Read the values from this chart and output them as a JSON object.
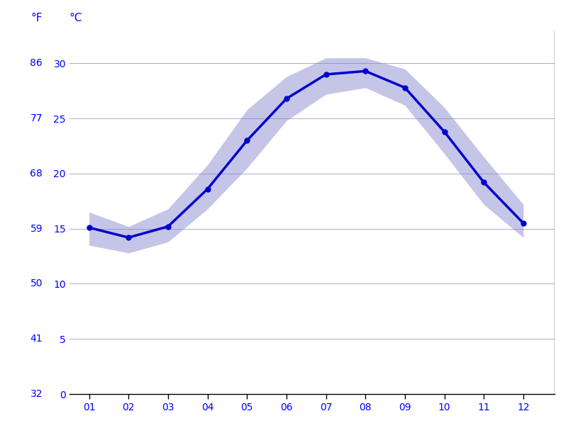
{
  "months": [
    1,
    2,
    3,
    4,
    5,
    6,
    7,
    8,
    9,
    10,
    11,
    12
  ],
  "month_labels": [
    "01",
    "02",
    "03",
    "04",
    "05",
    "06",
    "07",
    "08",
    "09",
    "10",
    "11",
    "12"
  ],
  "avg_temp_c": [
    15.1,
    14.2,
    15.2,
    18.6,
    23.0,
    26.8,
    29.0,
    29.3,
    27.8,
    23.8,
    19.2,
    15.5
  ],
  "temp_high_c": [
    16.5,
    15.2,
    16.8,
    20.8,
    25.8,
    28.8,
    30.5,
    30.5,
    29.5,
    26.0,
    21.5,
    17.2
  ],
  "temp_low_c": [
    13.5,
    12.8,
    13.8,
    16.8,
    20.5,
    24.8,
    27.2,
    27.8,
    26.2,
    21.8,
    17.2,
    14.2
  ],
  "line_color": "#0000cc",
  "band_color": "#8080cc",
  "band_alpha": 0.45,
  "ylim_c": [
    0,
    33
  ],
  "yticks_c": [
    0,
    5,
    10,
    15,
    20,
    25,
    30
  ],
  "yticks_f": [
    32,
    41,
    50,
    59,
    68,
    77,
    86
  ],
  "axis_color": "#0000ff",
  "tick_color": "#0000ff",
  "grid_color": "#aaaacc",
  "background_color": "#ffffff",
  "marker_size": 5,
  "line_width": 2.5,
  "figsize": [
    8.15,
    6.11
  ],
  "dpi": 100
}
